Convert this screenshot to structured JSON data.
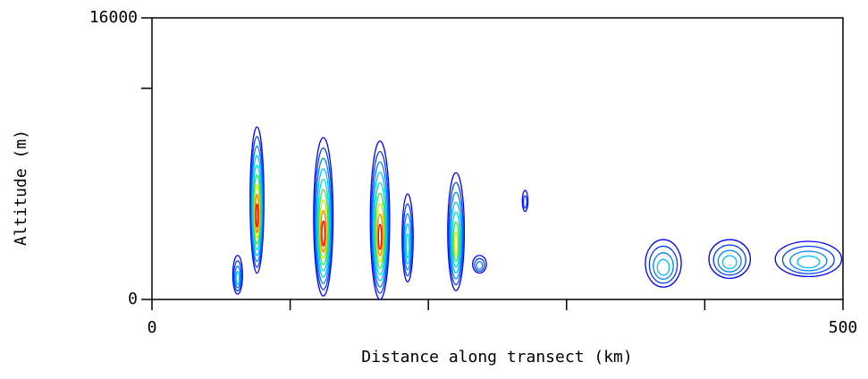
{
  "chart_data": {
    "type": "contour",
    "xlabel": "Distance along transect (km)",
    "ylabel": "Altitude (m)",
    "xlim": [
      0,
      500
    ],
    "ylim": [
      0,
      16000
    ],
    "xticks": [
      0,
      500
    ],
    "x_minor_ticks": [
      100,
      200,
      300,
      400
    ],
    "yticks": [
      0,
      16000
    ],
    "y_minor_ticks": [
      12000
    ],
    "level_colors": [
      "#0000ff",
      "#0040ff",
      "#0080ff",
      "#00c0ff",
      "#00e0c0",
      "#40e040",
      "#e0e000",
      "#ff8000",
      "#ff0000"
    ],
    "cells": [
      {
        "x": 62,
        "base": 300,
        "top": 2500,
        "width": 7,
        "peak": 4
      },
      {
        "x": 76,
        "base": 1500,
        "top": 9800,
        "width": 10,
        "peak": 9
      },
      {
        "x": 124,
        "base": 200,
        "top": 9200,
        "width": 14,
        "peak": 9
      },
      {
        "x": 165,
        "base": 0,
        "top": 9000,
        "width": 14,
        "peak": 9
      },
      {
        "x": 185,
        "base": 1000,
        "top": 6000,
        "width": 8,
        "peak": 5
      },
      {
        "x": 220,
        "base": 500,
        "top": 7200,
        "width": 12,
        "peak": 7
      },
      {
        "x": 237,
        "base": 1500,
        "top": 2500,
        "width": 10,
        "peak": 3
      },
      {
        "x": 270,
        "base": 5000,
        "top": 6200,
        "width": 4,
        "peak": 2
      },
      {
        "x": 370,
        "base": 700,
        "top": 3400,
        "width": 26,
        "peak": 4
      },
      {
        "x": 418,
        "base": 1200,
        "top": 3400,
        "width": 30,
        "peak": 4
      },
      {
        "x": 475,
        "base": 1300,
        "top": 3300,
        "width": 48,
        "peak": 4
      }
    ]
  }
}
